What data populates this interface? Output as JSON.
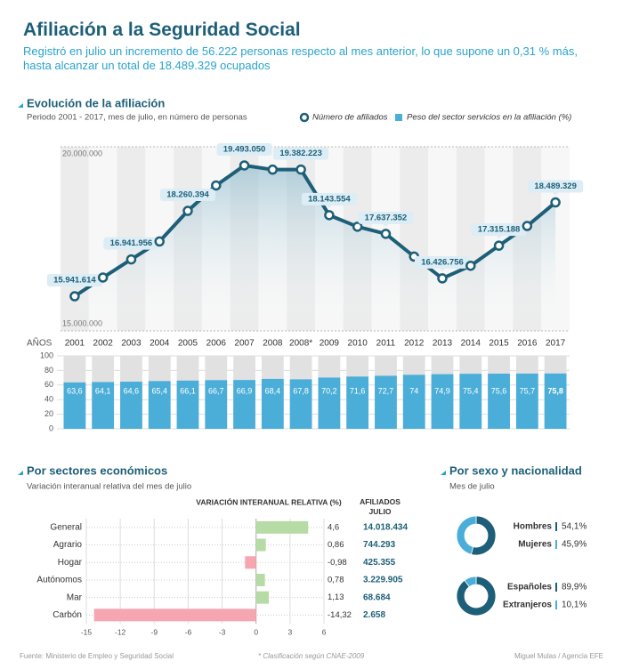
{
  "header": {
    "title": "Afiliación a la Seguridad Social",
    "subtitle": "Registró en julio un incremento de 56.222 personas respecto al mes anterior, lo que supone un 0,31 % más, hasta alcanzar un total de 18.489.329 ocupados"
  },
  "chart_data": [
    {
      "type": "line",
      "title": "Evolución de la afiliación",
      "subtitle": "Periodo 2001 - 2017, mes de julio, en número de personas",
      "x_label": "AÑOS",
      "categories": [
        "2001",
        "2002",
        "2003",
        "2004",
        "2005",
        "2006",
        "2007",
        "2008",
        "2008*",
        "2009",
        "2010",
        "2011",
        "2012",
        "2013",
        "2014",
        "2015",
        "2016",
        "2017"
      ],
      "series": [
        {
          "name": "Número de afiliados",
          "color": "#1d5f78",
          "values": [
            15941614,
            16450000,
            16941956,
            17430000,
            18260394,
            18950000,
            19493050,
            19380000,
            19382223,
            18143554,
            17830000,
            17637352,
            17020000,
            16426756,
            16770000,
            17315188,
            17850000,
            18489329
          ],
          "value_labels": [
            "15.941.614",
            null,
            "16.941.956",
            null,
            "18.260.394",
            null,
            "19.493.050",
            null,
            "19.382.223",
            "18.143.554",
            null,
            "17.637.352",
            null,
            "16.426.756",
            null,
            "17.315.188",
            null,
            "18.489.329"
          ]
        }
      ],
      "ylim": [
        15000000,
        20000000
      ],
      "yticks": [
        {
          "value": 15000000,
          "label": "15.000.000"
        },
        {
          "value": 20000000,
          "label": "20.000.000"
        }
      ],
      "grid": true
    },
    {
      "type": "bar",
      "series": [
        {
          "name": "Peso del sector servicios en la afiliación (%)",
          "color": "#4aaed8",
          "values": [
            63.6,
            64.1,
            64.6,
            65.4,
            66.1,
            66.7,
            66.9,
            68.4,
            67.8,
            70.2,
            71.6,
            72.7,
            74,
            74.9,
            75.4,
            75.6,
            75.7,
            75.8
          ],
          "value_labels": [
            "63,6",
            "64,1",
            "64,6",
            "65,4",
            "66,1",
            "66,7",
            "66,9",
            "68,4",
            "67,8",
            "70,2",
            "71,6",
            "72,7",
            "74",
            "74,9",
            "75,4",
            "75,6",
            "75,7",
            "75,8"
          ]
        }
      ],
      "ylim": [
        0,
        100
      ],
      "yticks": [
        0,
        20,
        40,
        60,
        80,
        100
      ],
      "grid": true
    },
    {
      "type": "hbar",
      "title": "Por sectores económicos",
      "subtitle": "Variación interanual relativa del mes de julio",
      "value_header": "VARIACIÓN INTERANUAL RELATIVA (%)",
      "afiliados_header": "AFILIADOS JULIO",
      "categories": [
        "General",
        "Agrario",
        "Hogar",
        "Autónomos",
        "Mar",
        "Carbón"
      ],
      "values": [
        4.6,
        0.86,
        -0.98,
        0.78,
        1.13,
        -14.32
      ],
      "value_labels": [
        "4,6",
        "0,86",
        "-0,98",
        "0,78",
        "1,13",
        "-14,32"
      ],
      "afiliados": [
        "14.018.434",
        "744.293",
        "425.355",
        "3.229.905",
        "68.684",
        "2.658"
      ],
      "colors": {
        "positive": "#b7dba4",
        "negative": "#f5a6b0"
      },
      "xlim": [
        -15,
        6
      ],
      "xticks": [
        -15,
        -12,
        -9,
        -6,
        -3,
        0,
        3,
        6
      ],
      "grid": true
    },
    {
      "type": "donut",
      "title": "Por sexo y nacionalidad",
      "subtitle": "Mes de julio",
      "categories": [
        "Hombres",
        "Mujeres"
      ],
      "values": [
        54.1,
        45.9
      ],
      "value_labels": [
        "54,1%",
        "45,9%"
      ],
      "colors": [
        "#1d5f78",
        "#4aaed8"
      ]
    },
    {
      "type": "donut",
      "categories": [
        "Españoles",
        "Extranjeros"
      ],
      "values": [
        89.9,
        10.1
      ],
      "value_labels": [
        "89,9%",
        "10,1%"
      ],
      "colors": [
        "#1d5f78",
        "#4aaed8"
      ]
    }
  ],
  "footer": {
    "source": "Fuente: Ministerio de Empleo y Seguridad Social",
    "note": "* Clasificación según CNAE-2009",
    "credit": "Miguel Mulas / Agencia EFE"
  }
}
